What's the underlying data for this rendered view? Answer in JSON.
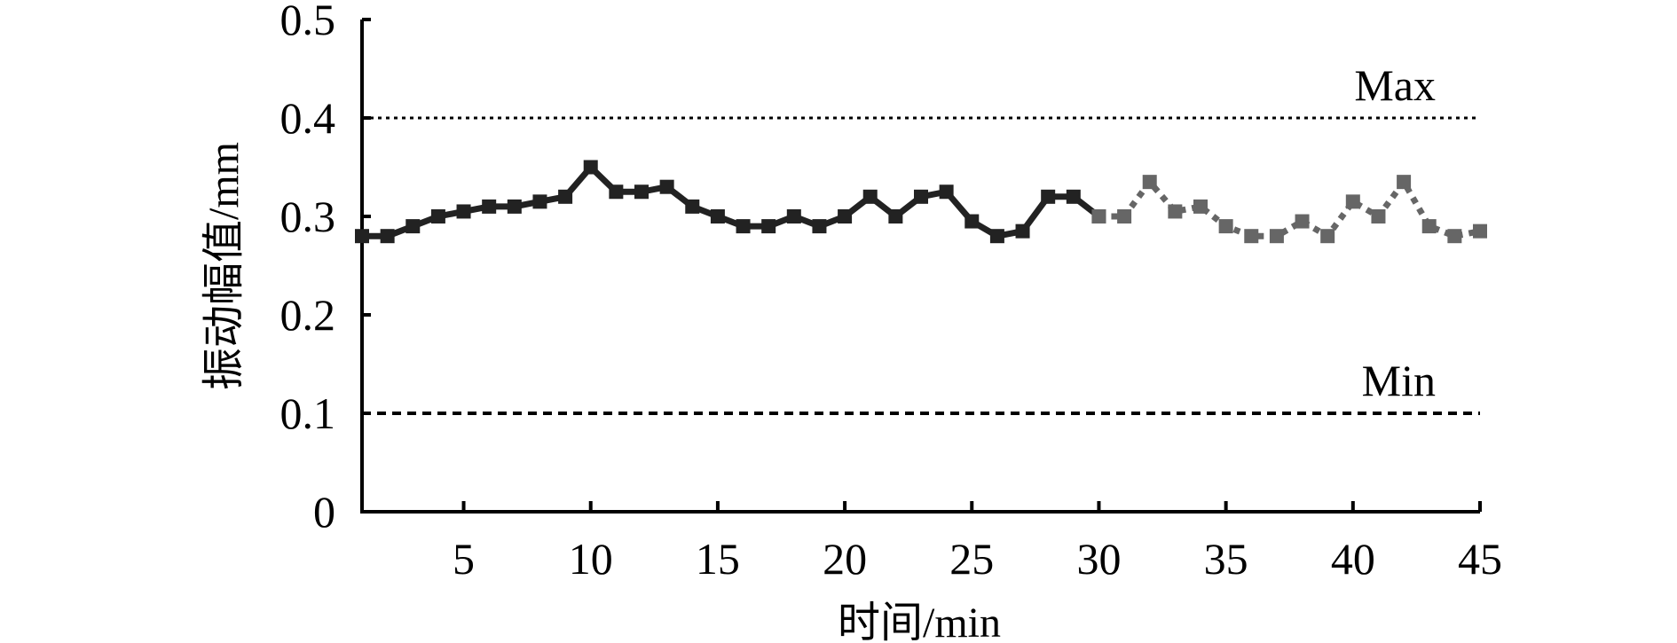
{
  "chart_data": {
    "type": "line",
    "xlabel": "时间/min",
    "ylabel": "振动幅值/mm",
    "xlim": [
      1,
      45
    ],
    "ylim": [
      0,
      0.5
    ],
    "x_ticks": [
      5,
      10,
      15,
      20,
      25,
      30,
      35,
      40,
      45
    ],
    "y_ticks": [
      0,
      0.1,
      0.2,
      0.3,
      0.4,
      0.5
    ],
    "y_tick_labels": [
      "0",
      "0.1",
      "0.2",
      "0.3",
      "0.4",
      "0.5"
    ],
    "grid": false,
    "reference_lines": [
      {
        "label": "Max",
        "y": 0.4,
        "style": "dotted"
      },
      {
        "label": "Min",
        "y": 0.1,
        "style": "dashed"
      }
    ],
    "series": [
      {
        "style": "solid",
        "color": "#222222",
        "x": [
          1,
          2,
          3,
          4,
          5,
          6,
          7,
          8,
          9,
          10,
          11,
          12,
          13,
          14,
          15,
          16,
          17,
          18,
          19,
          20,
          21,
          22,
          23,
          24,
          25,
          26,
          27,
          28,
          29,
          30
        ],
        "y": [
          0.28,
          0.28,
          0.29,
          0.3,
          0.305,
          0.31,
          0.31,
          0.315,
          0.32,
          0.35,
          0.325,
          0.325,
          0.33,
          0.31,
          0.3,
          0.29,
          0.29,
          0.3,
          0.29,
          0.3,
          0.32,
          0.3,
          0.32,
          0.325,
          0.295,
          0.28,
          0.285,
          0.32,
          0.32,
          0.3
        ]
      },
      {
        "style": "dotted",
        "color": "#666666",
        "x": [
          30,
          31,
          32,
          33,
          34,
          35,
          36,
          37,
          38,
          39,
          40,
          41,
          42,
          43,
          44,
          45
        ],
        "y": [
          0.3,
          0.3,
          0.335,
          0.305,
          0.31,
          0.29,
          0.28,
          0.28,
          0.295,
          0.28,
          0.315,
          0.3,
          0.335,
          0.29,
          0.28,
          0.285
        ]
      }
    ]
  }
}
